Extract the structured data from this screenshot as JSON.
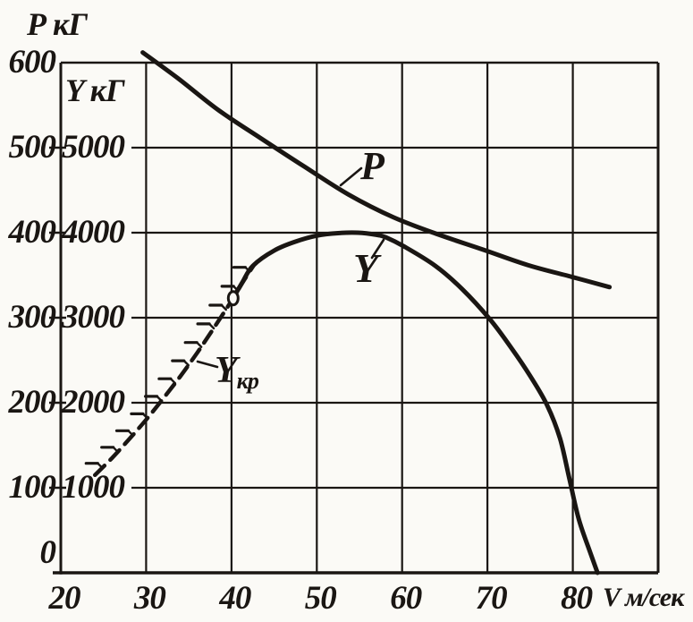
{
  "figure": {
    "paper": "#fbfaf6",
    "ink": "#1a1613"
  },
  "axes": {
    "x": {
      "title": "V м/сек",
      "unit": "м/сек",
      "min": 20,
      "max": 90,
      "ticks": [
        20,
        30,
        40,
        50,
        60,
        70,
        80
      ]
    },
    "y_left_P": {
      "title": "Р кГ",
      "unit": "кГ",
      "min": 0,
      "max": 600,
      "ticks": [
        600,
        500,
        400,
        300,
        200,
        100,
        0
      ]
    },
    "y_inner_Y": {
      "title": "Y кГ",
      "unit": "кГ",
      "min": 0,
      "max": 6000,
      "ticks": [
        5000,
        4000,
        3000,
        2000,
        1000
      ]
    }
  },
  "chart_data": {
    "type": "line",
    "title": "",
    "grid": true,
    "legend": false,
    "x": {
      "label": "V м/сек",
      "range": [
        20,
        90
      ]
    },
    "y_scales": {
      "P": {
        "label": "Р кГ",
        "range": [
          0,
          600
        ]
      },
      "Y": {
        "label": "Y кГ",
        "range": [
          0,
          6000
        ]
      }
    },
    "series": [
      {
        "name": "P",
        "label": "P",
        "scale": "P",
        "style": "solid",
        "points": [
          [
            29.6,
            612
          ],
          [
            33.8,
            581
          ],
          [
            38.5,
            544
          ],
          [
            43.3,
            512
          ],
          [
            48.5,
            478
          ],
          [
            53.7,
            445
          ],
          [
            59,
            418
          ],
          [
            64.2,
            398
          ],
          [
            69.5,
            380
          ],
          [
            74.7,
            362
          ],
          [
            79.9,
            348
          ],
          [
            84.3,
            336
          ]
        ]
      },
      {
        "name": "Y",
        "label": "Y",
        "scale": "Y",
        "style": "solid",
        "points": [
          [
            40.2,
            3230
          ],
          [
            41.3,
            3420
          ],
          [
            42.5,
            3610
          ],
          [
            45,
            3790
          ],
          [
            47.5,
            3895
          ],
          [
            50,
            3965
          ],
          [
            52.5,
            3995
          ],
          [
            54.8,
            4000
          ],
          [
            57,
            3975
          ],
          [
            58.1,
            3945
          ],
          [
            60.2,
            3840
          ],
          [
            63.9,
            3610
          ],
          [
            67,
            3340
          ],
          [
            70.3,
            2980
          ],
          [
            72.9,
            2630
          ],
          [
            75,
            2315
          ],
          [
            77,
            1970
          ],
          [
            78.5,
            1580
          ],
          [
            79.6,
            1105
          ],
          [
            80.7,
            630
          ],
          [
            82,
            250
          ],
          [
            82.9,
            0
          ]
        ]
      },
      {
        "name": "Y_kr",
        "label": "Yкр",
        "label_main": "Y",
        "label_sub": "кр",
        "scale": "Y",
        "style": "hatched-boundary",
        "points": [
          [
            24,
            1150
          ],
          [
            26,
            1350
          ],
          [
            28,
            1570
          ],
          [
            30,
            1800
          ],
          [
            32,
            2050
          ],
          [
            34,
            2310
          ],
          [
            36,
            2590
          ],
          [
            38,
            2890
          ],
          [
            40.2,
            3230
          ],
          [
            41.4,
            3430
          ],
          [
            42.7,
            3630
          ]
        ]
      }
    ],
    "marker_circle": {
      "series": "Y",
      "v": 40.2,
      "value": 3230
    }
  }
}
